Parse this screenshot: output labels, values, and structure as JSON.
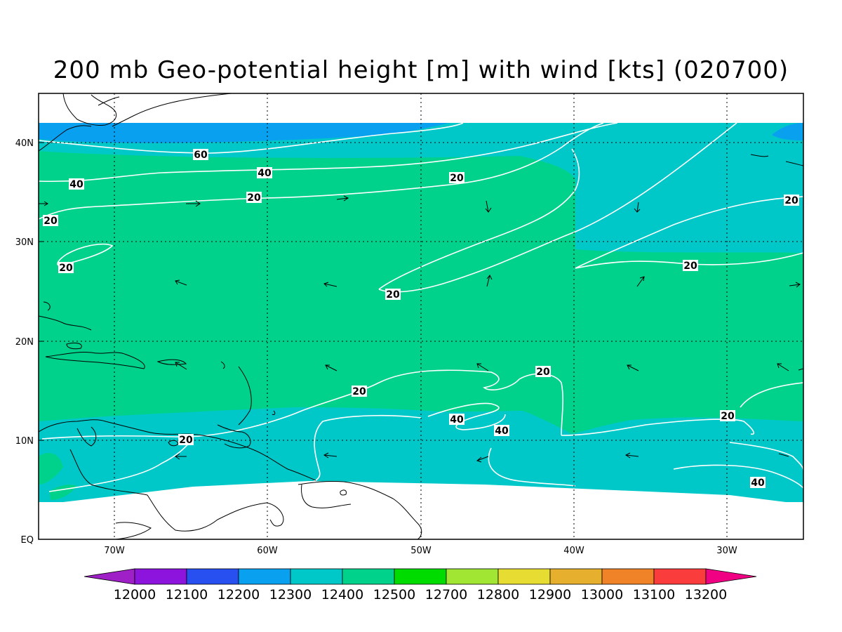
{
  "title": "200 mb Geo-potential height [m] with wind [kts] (020700)",
  "lat_ticks": [
    "40N",
    "30N",
    "20N",
    "10N",
    "EQ"
  ],
  "lon_ticks": [
    "70W",
    "60W",
    "50W",
    "40W",
    "30W"
  ],
  "colorbar": {
    "levels": [
      "12000",
      "12100",
      "12200",
      "12300",
      "12400",
      "12500",
      "12700",
      "12800",
      "12900",
      "13000",
      "13100",
      "13200"
    ],
    "colors": [
      "#a020c8",
      "#8c14dc",
      "#2850f0",
      "#0aa0f0",
      "#00c8c8",
      "#00d28c",
      "#00dc00",
      "#a0e632",
      "#e6dc32",
      "#e6af2d",
      "#f08228",
      "#fa3c3c",
      "#f00082"
    ]
  },
  "field_colors": {
    "height_12300": "#0aa0f0",
    "height_12400": "#00c8c8",
    "height_12500": "#00d28c",
    "height_12200": "#2850f0",
    "contour": "#ffffff",
    "coast": "#000000"
  },
  "contour_labels": [
    "60",
    "40",
    "40",
    "20",
    "20",
    "20",
    "20",
    "20",
    "20",
    "20",
    "20",
    "20",
    "40",
    "40",
    "20",
    "20",
    "40"
  ]
}
